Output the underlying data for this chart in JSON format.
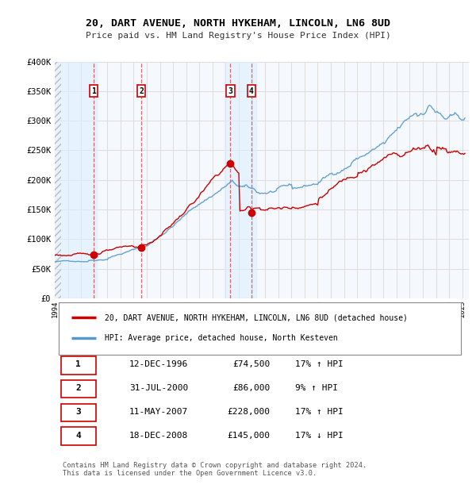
{
  "title": "20, DART AVENUE, NORTH HYKEHAM, LINCOLN, LN6 8UD",
  "subtitle": "Price paid vs. HM Land Registry's House Price Index (HPI)",
  "ylabel_ticks": [
    "£0",
    "£50K",
    "£100K",
    "£150K",
    "£200K",
    "£250K",
    "£300K",
    "£350K",
    "£400K"
  ],
  "ytick_values": [
    0,
    50000,
    100000,
    150000,
    200000,
    250000,
    300000,
    350000,
    400000
  ],
  "ylim": [
    0,
    400000
  ],
  "xlim_start": 1994.0,
  "xlim_end": 2025.5,
  "transactions": [
    {
      "num": 1,
      "date_dec": 1996.95,
      "price": 74500,
      "label": "1"
    },
    {
      "num": 2,
      "date_dec": 2000.58,
      "price": 86000,
      "label": "2"
    },
    {
      "num": 3,
      "date_dec": 2007.36,
      "price": 228000,
      "label": "3"
    },
    {
      "num": 4,
      "date_dec": 2008.96,
      "price": 145000,
      "label": "4"
    }
  ],
  "hpi_line_color": "#5599cc",
  "sale_line_color": "#cc0000",
  "marker_color": "#cc0000",
  "shade_color": "#ddeeff",
  "hatch_color": "#cccccc",
  "grid_color": "#dddddd",
  "plot_bg_color": "#f5f8fc",
  "bg_color": "#ffffff",
  "dashed_line_color": "#dd4444",
  "legend_entries": [
    {
      "label": "20, DART AVENUE, NORTH HYKEHAM, LINCOLN, LN6 8UD (detached house)",
      "color": "#cc0000"
    },
    {
      "label": "HPI: Average price, detached house, North Kesteven",
      "color": "#5599cc"
    }
  ],
  "table_rows": [
    {
      "num": "1",
      "date": "12-DEC-1996",
      "price": "£74,500",
      "hpi": "17% ↑ HPI"
    },
    {
      "num": "2",
      "date": "31-JUL-2000",
      "price": "£86,000",
      "hpi": "9% ↑ HPI"
    },
    {
      "num": "3",
      "date": "11-MAY-2007",
      "price": "£228,000",
      "hpi": "17% ↑ HPI"
    },
    {
      "num": "4",
      "date": "18-DEC-2008",
      "price": "£145,000",
      "hpi": "17% ↓ HPI"
    }
  ],
  "footer": "Contains HM Land Registry data © Crown copyright and database right 2024.\nThis data is licensed under the Open Government Licence v3.0.",
  "shade_regions": [
    {
      "start": 1994.0,
      "end": 1997.2
    },
    {
      "start": 2006.9,
      "end": 2009.3
    }
  ]
}
